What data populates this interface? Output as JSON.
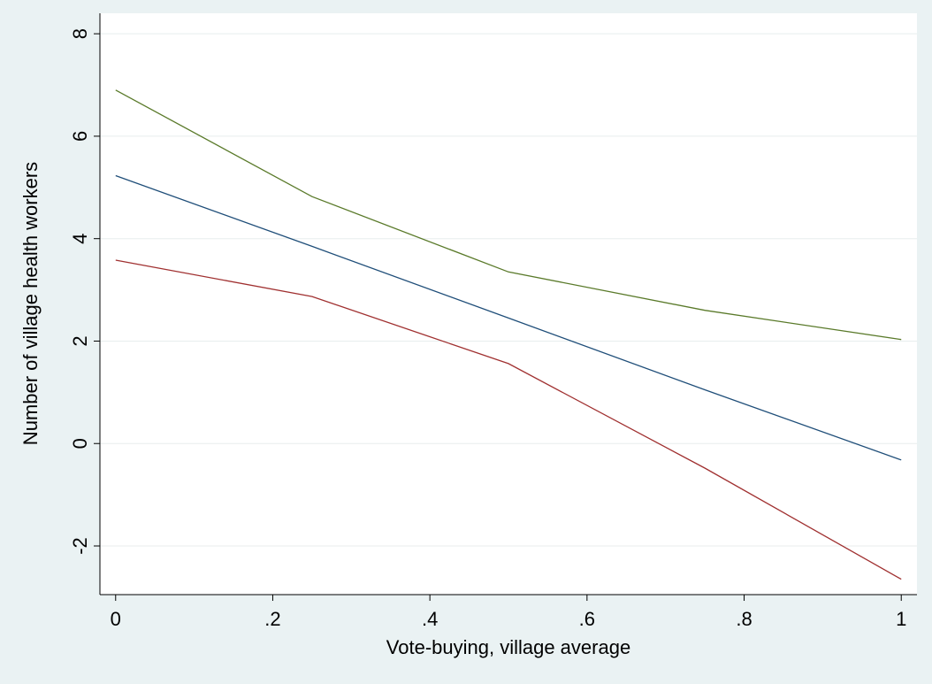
{
  "chart_data": {
    "type": "line",
    "title": "",
    "xlabel": "Vote-buying, village average",
    "ylabel": "Number of village health workers",
    "xlim": [
      -0.02,
      1.02
    ],
    "ylim": [
      -2.95,
      8.4
    ],
    "xticks": [
      {
        "value": 0,
        "label": "0"
      },
      {
        "value": 0.2,
        "label": ".2"
      },
      {
        "value": 0.4,
        "label": ".4"
      },
      {
        "value": 0.6,
        "label": ".6"
      },
      {
        "value": 0.8,
        "label": ".8"
      },
      {
        "value": 1,
        "label": "1"
      }
    ],
    "yticks": [
      {
        "value": -2,
        "label": "-2"
      },
      {
        "value": 0,
        "label": "0"
      },
      {
        "value": 2,
        "label": "2"
      },
      {
        "value": 4,
        "label": "4"
      },
      {
        "value": 6,
        "label": "6"
      },
      {
        "value": 8,
        "label": "8"
      }
    ],
    "grid": true,
    "legend": "none",
    "x": [
      0,
      0.25,
      0.5,
      0.75,
      1
    ],
    "series": [
      {
        "color": "#5a7a2a",
        "values": [
          6.9,
          4.82,
          3.35,
          2.6,
          2.03
        ]
      },
      {
        "color": "#1f4e79",
        "values": [
          5.23,
          3.85,
          2.45,
          1.05,
          -0.32
        ]
      },
      {
        "color": "#a03030",
        "values": [
          3.58,
          2.87,
          1.56,
          -0.48,
          -2.65
        ]
      }
    ]
  }
}
